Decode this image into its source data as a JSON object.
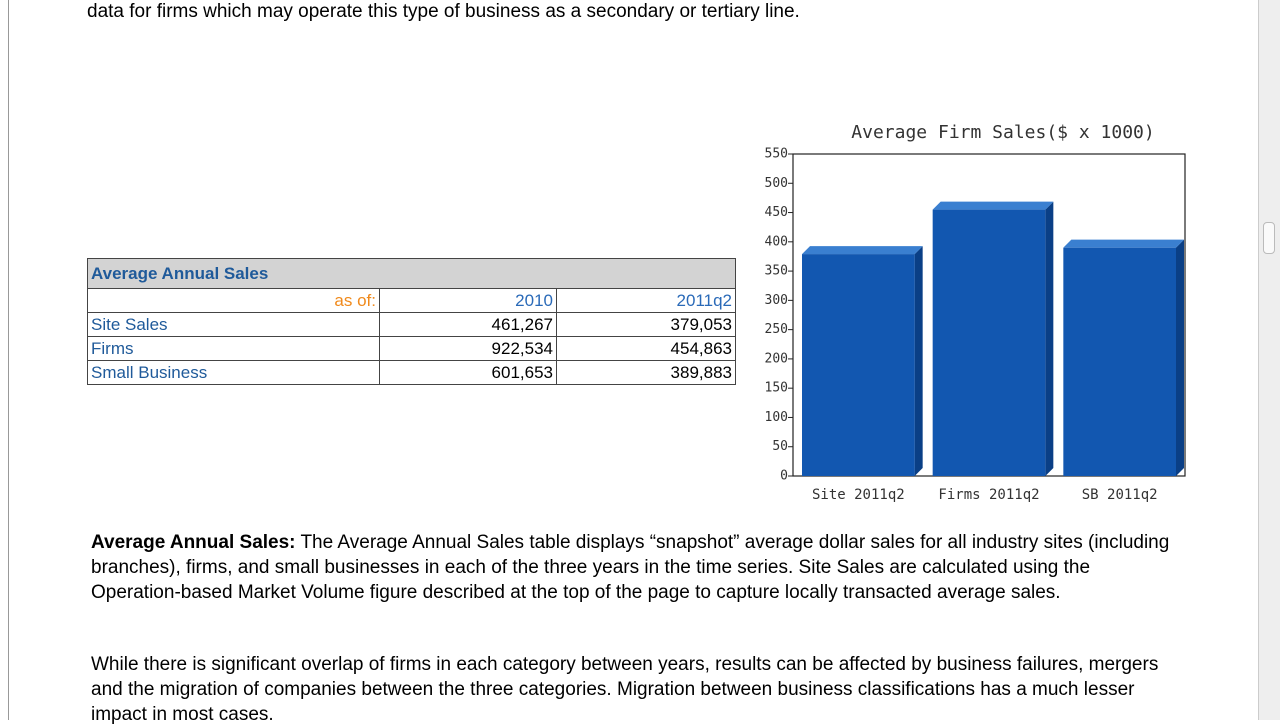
{
  "intro": "data for firms which may operate this type of business as a secondary or tertiary line.",
  "table": {
    "title": "Average Annual Sales",
    "header": [
      "as of:",
      "2010",
      "2011q2"
    ],
    "rows": [
      [
        "Site Sales",
        "461,267",
        "379,053"
      ],
      [
        "Firms",
        "922,534",
        "454,863"
      ],
      [
        "Small Business",
        "601,653",
        "389,883"
      ]
    ]
  },
  "chart_data": {
    "type": "bar",
    "title": "Average Firm Sales($ x 1000)",
    "categories": [
      "Site 2011q2",
      "Firms 2011q2",
      "SB 2011q2"
    ],
    "values": [
      379,
      455,
      390
    ],
    "color": "#1257b0",
    "ylim": [
      0,
      550
    ],
    "yticks": [
      0,
      50,
      100,
      150,
      200,
      250,
      300,
      350,
      400,
      450,
      500,
      550
    ],
    "grid": false
  },
  "paragraphs": [
    {
      "lead": "Average Annual Sales:",
      "text": "The Average Annual Sales table displays “snapshot” average dollar sales for all industry sites (including branches), firms, and small businesses in each of the three years in the time series. Site Sales are calculated using the Operation-based Market Volume figure described at the top of the page to capture locally transacted average sales."
    },
    {
      "text": "While there is significant overlap of firms in each category between years, results can be affected by business failures, mergers and the migration of companies between the three categories. Migration between business classifications has a much lesser impact in most cases."
    }
  ]
}
